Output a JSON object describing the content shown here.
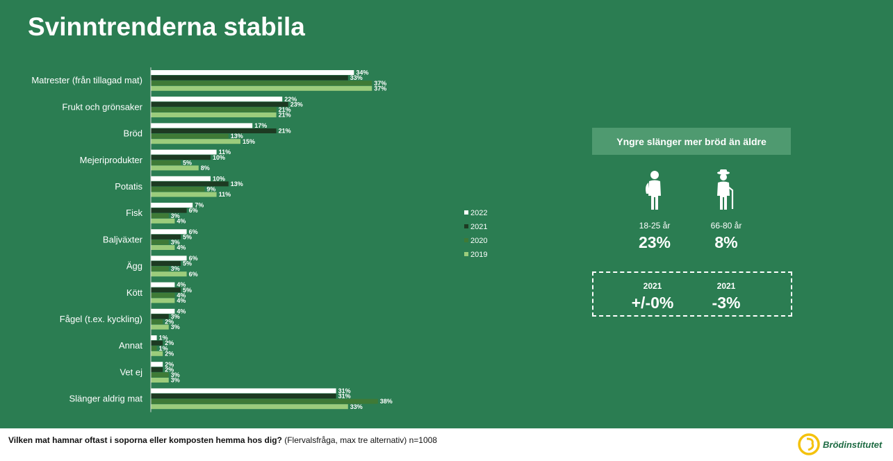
{
  "title": "Svinntrenderna stabila",
  "chart_data": {
    "type": "bar",
    "orientation": "horizontal",
    "categories": [
      "Matrester (från tillagad mat)",
      "Frukt och grönsaker",
      "Bröd",
      "Mejeriprodukter",
      "Potatis",
      "Fisk",
      "Baljväxter",
      "Ägg",
      "Kött",
      "Fågel (t.ex. kyckling)",
      "Annat",
      "Vet ej",
      "Slänger aldrig mat"
    ],
    "series": [
      {
        "name": "2022",
        "color": "#ffffff",
        "values": [
          34,
          22,
          17,
          11,
          10,
          7,
          6,
          6,
          4,
          4,
          1,
          2,
          31
        ]
      },
      {
        "name": "2021",
        "color": "#1d3a22",
        "values": [
          33,
          23,
          21,
          10,
          13,
          6,
          5,
          5,
          5,
          3,
          2,
          2,
          31
        ]
      },
      {
        "name": "2020",
        "color": "#3f7a36",
        "values": [
          37,
          21,
          13,
          5,
          9,
          3,
          3,
          3,
          4,
          2,
          1,
          3,
          38
        ]
      },
      {
        "name": "2019",
        "color": "#9ccc7c",
        "values": [
          37,
          21,
          15,
          8,
          11,
          4,
          4,
          6,
          4,
          3,
          2,
          3,
          33
        ]
      }
    ],
    "value_suffix": "%",
    "xlim": [
      0,
      40
    ],
    "legend": [
      "2022",
      "2021",
      "2020",
      "2019"
    ]
  },
  "callout": {
    "header": "Yngre slänger mer bröd än äldre",
    "groups": [
      {
        "age": "18-25 år",
        "value": "23%",
        "change_year": "2021",
        "change": "+/-0%"
      },
      {
        "age": "66-80 år",
        "value": "8%",
        "change_year": "2021",
        "change": "-3%"
      }
    ]
  },
  "footer": {
    "question_bold": "Vilken mat hamnar oftast i soporna eller komposten hemma hos dig?",
    "question_rest": " (Flervalsfråga, max tre alternativ) n=1008",
    "logo_text": "Brödinstitutet"
  }
}
